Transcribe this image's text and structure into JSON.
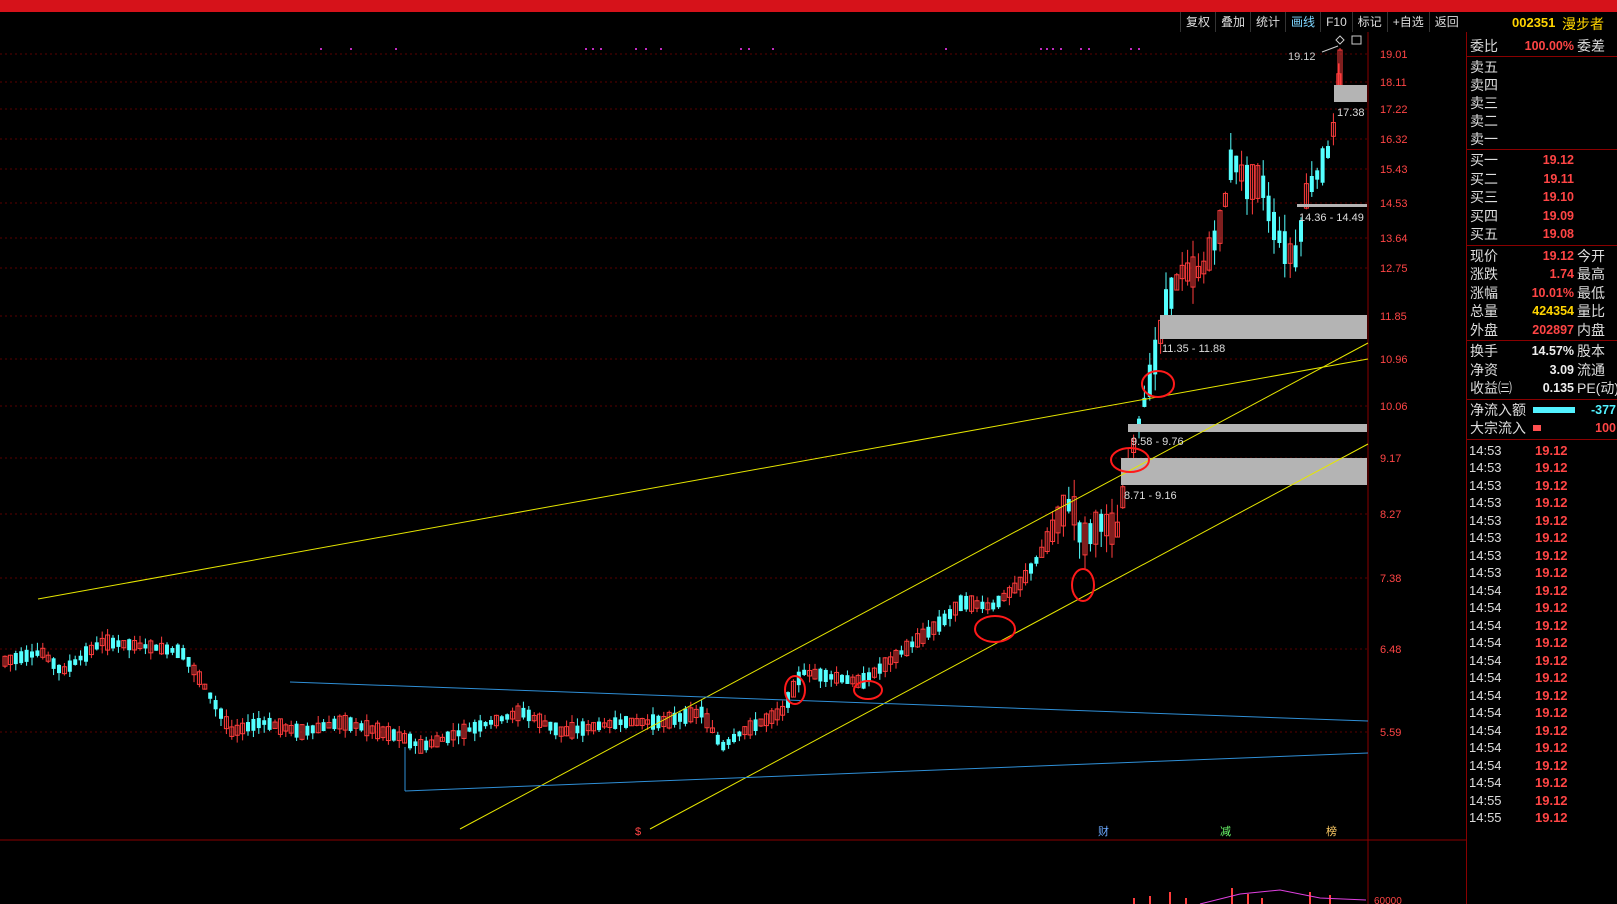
{
  "toolbar": {
    "items": [
      "复权",
      "叠加",
      "统计",
      "画线",
      "F10",
      "标记",
      "+自选",
      "返回"
    ],
    "active": "画线"
  },
  "stock": {
    "code": "002351",
    "name": "漫步者"
  },
  "price_axis": [
    "19.01",
    "18.11",
    "17.22",
    "16.32",
    "15.43",
    "14.53",
    "13.64",
    "12.75",
    "11.85",
    "10.96",
    "10.06",
    "9.17",
    "8.27",
    "7.38",
    "6.48",
    "5.59"
  ],
  "volume_axis_label": "60000",
  "annotations": {
    "current_high": "19.12",
    "box1_label": "17.38",
    "box2_label": "14.36 - 14.49",
    "box3_label": "11.35 - 11.88",
    "box4_label": "9.58 - 9.76",
    "box5_label": "8.71 - 9.16"
  },
  "markers": {
    "m1": "$",
    "m2": "财",
    "m3": "减",
    "m4": "榜"
  },
  "colors": {
    "up": "#ff3c3c",
    "down": "#54ffff",
    "trend": "#e6e600",
    "channel": "#2f8fd6",
    "highlight": "#ff1a1a"
  },
  "quote": {
    "weibi_label": "委比",
    "weibi_value": "100.00%",
    "weicha_label": "委差",
    "sell": [
      {
        "label": "卖五",
        "price": "",
        "vol": ""
      },
      {
        "label": "卖四",
        "price": "",
        "vol": ""
      },
      {
        "label": "卖三",
        "price": "",
        "vol": ""
      },
      {
        "label": "卖二",
        "price": "",
        "vol": ""
      },
      {
        "label": "卖一",
        "price": "",
        "vol": ""
      }
    ],
    "buy": [
      {
        "label": "买一",
        "price": "19.12"
      },
      {
        "label": "买二",
        "price": "19.11"
      },
      {
        "label": "买三",
        "price": "19.10"
      },
      {
        "label": "买四",
        "price": "19.09"
      },
      {
        "label": "买五",
        "price": "19.08"
      }
    ],
    "stats": [
      {
        "label": "现价",
        "value": "19.12",
        "label2": "今开",
        "color": "red"
      },
      {
        "label": "涨跌",
        "value": "1.74",
        "label2": "最高",
        "color": "red"
      },
      {
        "label": "涨幅",
        "value": "10.01%",
        "label2": "最低",
        "color": "red"
      },
      {
        "label": "总量",
        "value": "424354",
        "label2": "量比",
        "color": "yel"
      },
      {
        "label": "外盘",
        "value": "202897",
        "label2": "内盘",
        "color": "red"
      }
    ],
    "fundamentals": [
      {
        "label": "换手",
        "value": "14.57%",
        "label2": "股本"
      },
      {
        "label": "净资",
        "value": "3.09",
        "label2": "流通"
      },
      {
        "label": "收益㈢",
        "value": "0.135",
        "label2": "PE(动)"
      }
    ],
    "flow": [
      {
        "label": "净流入额",
        "value": "-377",
        "color": "cyan"
      },
      {
        "label": "大宗流入",
        "value": "100",
        "color": "red"
      }
    ]
  },
  "ticks": [
    {
      "time": "14:53",
      "price": "19.12"
    },
    {
      "time": "14:53",
      "price": "19.12"
    },
    {
      "time": "14:53",
      "price": "19.12"
    },
    {
      "time": "14:53",
      "price": "19.12"
    },
    {
      "time": "14:53",
      "price": "19.12"
    },
    {
      "time": "14:53",
      "price": "19.12"
    },
    {
      "time": "14:53",
      "price": "19.12"
    },
    {
      "time": "14:53",
      "price": "19.12"
    },
    {
      "time": "14:54",
      "price": "19.12"
    },
    {
      "time": "14:54",
      "price": "19.12"
    },
    {
      "time": "14:54",
      "price": "19.12"
    },
    {
      "time": "14:54",
      "price": "19.12"
    },
    {
      "time": "14:54",
      "price": "19.12"
    },
    {
      "time": "14:54",
      "price": "19.12"
    },
    {
      "time": "14:54",
      "price": "19.12"
    },
    {
      "time": "14:54",
      "price": "19.12"
    },
    {
      "time": "14:54",
      "price": "19.12"
    },
    {
      "time": "14:54",
      "price": "19.12"
    },
    {
      "time": "14:54",
      "price": "19.12"
    },
    {
      "time": "14:54",
      "price": "19.12"
    },
    {
      "time": "14:55",
      "price": "19.12"
    },
    {
      "time": "14:55",
      "price": "19.12"
    }
  ]
}
